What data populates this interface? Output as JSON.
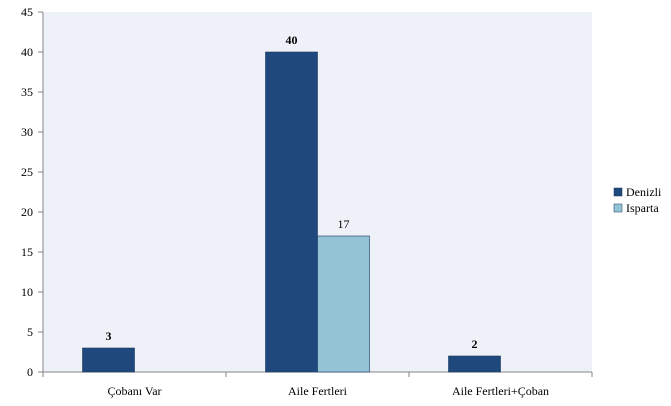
{
  "chart_data": {
    "type": "bar",
    "categories": [
      "Çobanı Var",
      "Aile Fertleri",
      "Aile Fertleri+Çoban"
    ],
    "series": [
      {
        "name": "Denizli",
        "values": [
          3,
          40,
          2
        ],
        "color": "#1F497D",
        "labels": [
          "3",
          "40",
          "2"
        ],
        "label_bold": true
      },
      {
        "name": "Isparta",
        "values": [
          null,
          17,
          null
        ],
        "color": "#93C3D5",
        "labels": [
          "",
          "17",
          ""
        ],
        "label_bold": false
      }
    ],
    "ylim": [
      0,
      45
    ],
    "yticks": [
      0,
      5,
      10,
      15,
      20,
      25,
      30,
      35,
      40,
      45
    ],
    "grid": false,
    "legend": "right",
    "plot_background": "#EEF2F8"
  }
}
